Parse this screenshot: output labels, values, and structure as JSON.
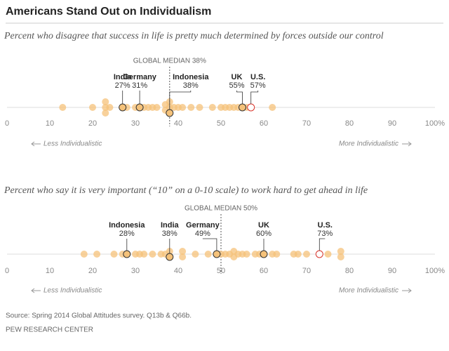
{
  "title": "Americans Stand Out on Individualism",
  "source": "Source: Spring 2014 Global Attitudes survey. Q13b & Q66b.",
  "footer": "PEW RESEARCH CENTER",
  "chart_data": [
    {
      "type": "dot",
      "subtitle": "Percent who disagree that success in life is pretty much determined by forces outside our control",
      "median": {
        "value": 38,
        "label": "GLOBAL MEDIAN 38%"
      },
      "left_note": "Less Individualistic",
      "right_note": "More Individualistic",
      "color": "#f5c27a",
      "values": [
        13,
        20,
        23,
        23,
        23,
        24,
        28,
        30,
        32,
        33,
        34,
        35,
        37,
        37,
        38,
        38,
        39,
        40,
        41,
        43,
        45,
        48,
        50,
        51,
        52,
        53,
        54,
        56,
        62
      ],
      "highlights": [
        {
          "name": "India",
          "value": 27,
          "value_label": "27%",
          "color": "#f5c27a"
        },
        {
          "name": "Germany",
          "value": 31,
          "value_label": "31%",
          "color": "#f5c27a"
        },
        {
          "name": "Indonesia",
          "value": 38,
          "value_label": "38%",
          "color": "#f5c27a"
        },
        {
          "name": "UK",
          "value": 55,
          "value_label": "55%",
          "color": "#f5c27a"
        },
        {
          "name": "U.S.",
          "value": 57,
          "value_label": "57%",
          "color": "#d9342b"
        }
      ],
      "xlim": [
        0,
        100
      ],
      "xticks": [
        0,
        10,
        20,
        30,
        40,
        50,
        60,
        70,
        80,
        90,
        {
          "value": 100,
          "label": "100%"
        }
      ]
    },
    {
      "type": "dot",
      "subtitle": "Percent who say it is very important (“10” on a 0-10 scale) to work hard to get ahead in life",
      "median": {
        "value": 50,
        "label": "GLOBAL MEDIAN 50%"
      },
      "left_note": "Less Individualistic",
      "right_note": "More Individualistic",
      "color": "#f5c27a",
      "values": [
        18,
        21,
        25,
        27,
        30,
        31,
        32,
        34,
        36,
        37,
        38,
        41,
        41,
        44,
        47,
        50,
        51,
        52,
        53,
        53,
        54,
        55,
        56,
        58,
        59,
        62,
        63,
        67,
        68,
        70,
        75,
        78,
        78
      ],
      "highlights": [
        {
          "name": "Indonesia",
          "value": 28,
          "value_label": "28%",
          "color": "#f5c27a"
        },
        {
          "name": "India",
          "value": 38,
          "value_label": "38%",
          "color": "#f5c27a"
        },
        {
          "name": "Germany",
          "value": 49,
          "value_label": "49%",
          "color": "#f5c27a"
        },
        {
          "name": "UK",
          "value": 60,
          "value_label": "60%",
          "color": "#f5c27a"
        },
        {
          "name": "U.S.",
          "value": 73,
          "value_label": "73%",
          "color": "#d9342b"
        }
      ],
      "xlim": [
        0,
        100
      ],
      "xticks": [
        0,
        10,
        20,
        30,
        40,
        50,
        60,
        70,
        80,
        90,
        {
          "value": 100,
          "label": "100%"
        }
      ]
    }
  ]
}
